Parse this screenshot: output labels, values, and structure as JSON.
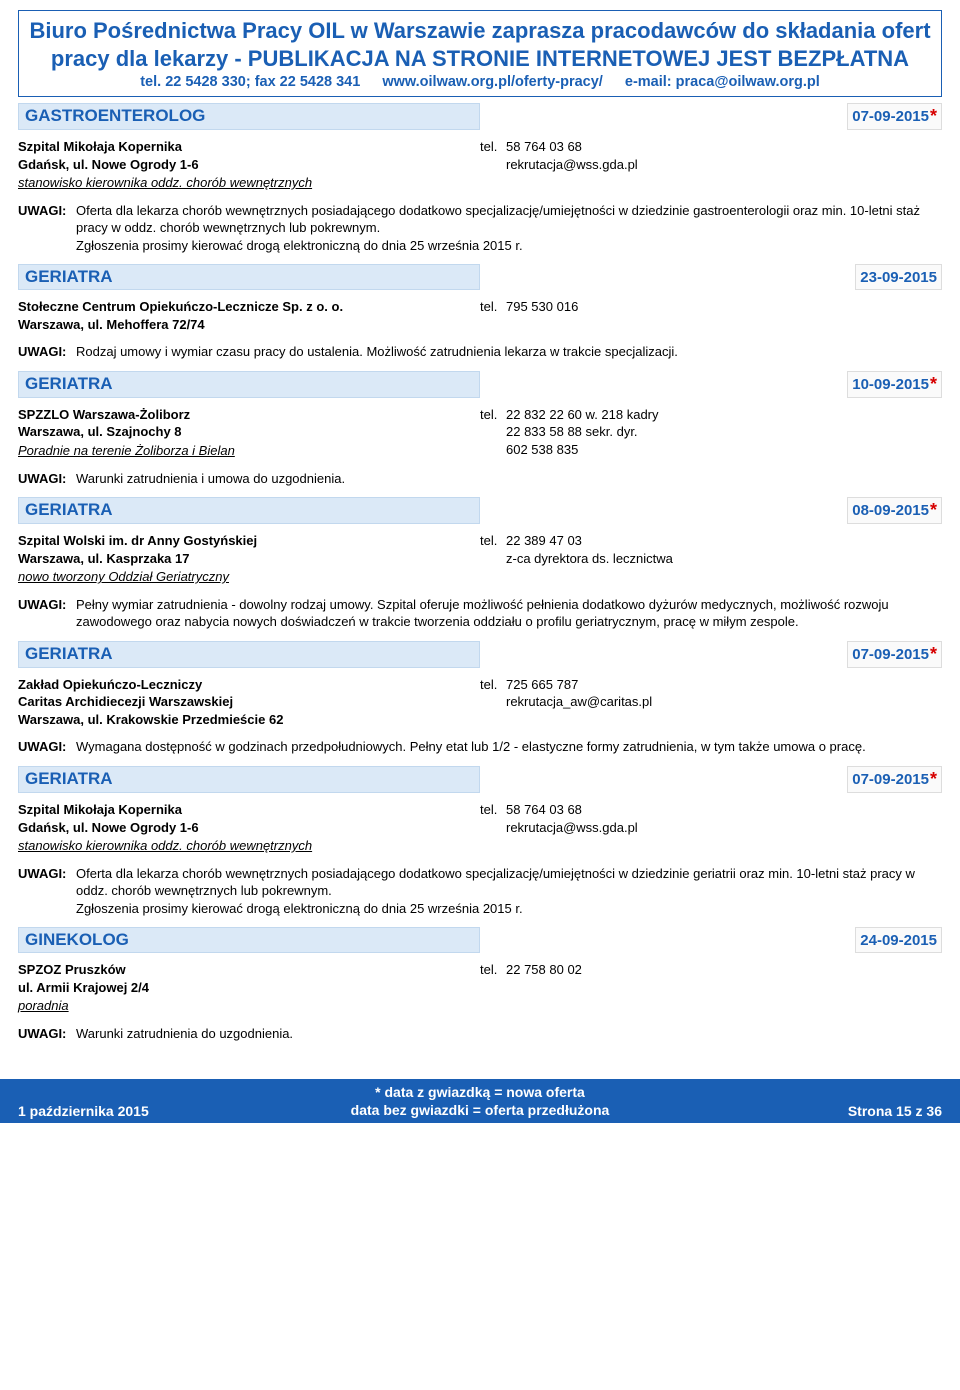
{
  "colors": {
    "blue": "#1a5fb4",
    "lightblue_bg": "#dbe9f7",
    "red": "#d60000"
  },
  "header": {
    "line1": "Biuro Pośrednictwa Pracy OIL w Warszawie zaprasza pracodawców do składania ofert",
    "line2": "pracy dla lekarzy - PUBLIKACJA NA STRONIE INTERNETOWEJ JEST BEZPŁATNA",
    "contact": "tel. 22 5428 330; fax 22 5428 341",
    "url": "www.oilwaw.org.pl/oferty-pracy/",
    "email": "e-mail: praca@oilwaw.org.pl"
  },
  "listings": [
    {
      "spec": "GASTROENTEROLOG",
      "date": "07-09-2015",
      "star": true,
      "emp_l1": "Szpital Mikołaja Kopernika",
      "emp_l2": "Gdańsk, ul. Nowe Ogrody 1-6",
      "emp_note": "stanowisko kierownika oddz. chorób wewnętrznych",
      "tel": "58 764 03 68",
      "contact2": "rekrutacja@wss.gda.pl",
      "uwagi": "Oferta dla lekarza chorób wewnętrznych posiadającego dodatkowo specjalizację/umiejętności w dziedzinie gastroenterologii oraz min. 10-letni staż pracy w oddz. chorób wewnętrznych lub pokrewnym.\nZgłoszenia prosimy kierować drogą elektroniczną do dnia 25 września 2015 r."
    },
    {
      "spec": "GERIATRA",
      "date": "23-09-2015",
      "star": false,
      "emp_l1": "Stołeczne Centrum Opiekuńczo-Lecznicze Sp. z o. o.",
      "emp_l2": "Warszawa, ul. Mehoffera 72/74",
      "emp_note": "",
      "tel": "795 530 016",
      "contact2": "",
      "uwagi": "Rodzaj umowy i wymiar czasu pracy do ustalenia. Możliwość zatrudnienia lekarza w trakcie specjalizacji."
    },
    {
      "spec": "GERIATRA",
      "date": "10-09-2015",
      "star": true,
      "emp_l1": "SPZZLO Warszawa-Żoliborz",
      "emp_l2": "Warszawa, ul. Szajnochy 8",
      "emp_note": "Poradnie na terenie Żoliborza i Bielan",
      "tel": "22 832 22 60 w. 218 kadry",
      "contact2": "22 833 58 88 sekr. dyr.",
      "contact3": "602 538 835",
      "uwagi": "Warunki zatrudnienia i umowa do uzgodnienia."
    },
    {
      "spec": "GERIATRA",
      "date": "08-09-2015",
      "star": true,
      "emp_l1": "Szpital Wolski im. dr Anny Gostyńskiej",
      "emp_l2": "Warszawa, ul. Kasprzaka 17",
      "emp_note": "nowo tworzony Oddział Geriatryczny",
      "tel": "22 389 47 03",
      "contact2": "z-ca dyrektora ds. lecznictwa",
      "uwagi": "Pełny wymiar zatrudnienia - dowolny rodzaj umowy. Szpital oferuje możliwość pełnienia dodatkowo dyżurów medycznych, możliwość rozwoju zawodowego oraz nabycia nowych doświadczeń w trakcie tworzenia oddziału o profilu geriatrycznym, pracę w miłym zespole."
    },
    {
      "spec": "GERIATRA",
      "date": "07-09-2015",
      "star": true,
      "emp_l1": "Zakład Opiekuńczo-Leczniczy",
      "emp_l2": "Caritas Archidiecezji Warszawskiej",
      "emp_l3": "Warszawa, ul. Krakowskie Przedmieście 62",
      "emp_note": "",
      "tel": "725 665 787",
      "contact2": "rekrutacja_aw@caritas.pl",
      "uwagi": "Wymagana dostępność w godzinach przedpołudniowych. Pełny etat lub 1/2 - elastyczne formy zatrudnienia, w tym także umowa o pracę."
    },
    {
      "spec": "GERIATRA",
      "date": "07-09-2015",
      "star": true,
      "emp_l1": "Szpital Mikołaja Kopernika",
      "emp_l2": "Gdańsk, ul. Nowe Ogrody 1-6",
      "emp_note": "stanowisko kierownika oddz. chorób wewnętrznych",
      "tel": "58 764 03 68",
      "contact2": "rekrutacja@wss.gda.pl",
      "uwagi": "Oferta dla lekarza chorób wewnętrznych posiadającego dodatkowo specjalizację/umiejętności w dziedzinie geriatrii oraz min. 10-letni staż pracy w oddz. chorób wewnętrznych lub pokrewnym.\nZgłoszenia prosimy kierować drogą elektroniczną do dnia 25 września 2015 r."
    },
    {
      "spec": "GINEKOLOG",
      "date": "24-09-2015",
      "star": false,
      "emp_l1": "SPZOZ Pruszków",
      "emp_l2": "ul. Armii Krajowej 2/4",
      "emp_note": "poradnia",
      "tel": "22 758 80 02",
      "contact2": "",
      "uwagi": "Warunki zatrudnienia do uzgodnienia."
    }
  ],
  "uwagi_label": "UWAGI:",
  "tel_label": "tel.",
  "footer": {
    "left": "1 października 2015",
    "center1": "* data z gwiazdką = nowa oferta",
    "center2": "data bez gwiazdki = oferta przedłużona",
    "right": "Strona 15 z 36"
  }
}
